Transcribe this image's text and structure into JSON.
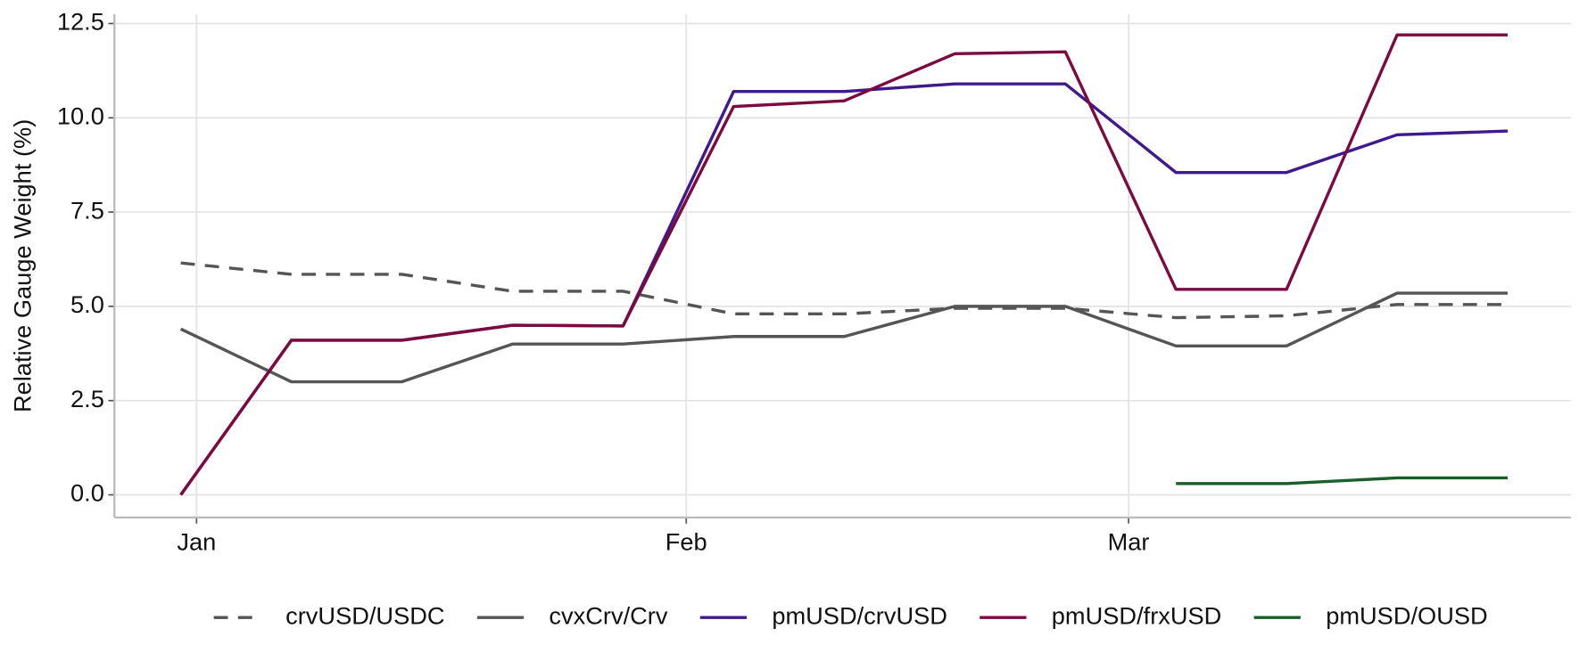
{
  "chart_data": {
    "type": "line",
    "y_label": "Relative Gauge Weight (%)",
    "x": [
      0,
      7,
      14,
      21,
      28,
      35,
      42,
      49,
      56,
      63,
      70,
      77,
      84
    ],
    "xlim": [
      -4.2,
      88
    ],
    "xticks": [
      {
        "value": 1,
        "label": "Jan"
      },
      {
        "value": 32,
        "label": "Feb"
      },
      {
        "value": 60,
        "label": "Mar"
      }
    ],
    "ylim": [
      -0.6,
      12.75
    ],
    "yticks": [
      {
        "value": 0,
        "label": "0.0"
      },
      2.5,
      {
        "value": 5,
        "label": "5.0"
      },
      7.5,
      {
        "value": 10,
        "label": "10.0"
      },
      12.5
    ],
    "grid": true,
    "legend": "bottom",
    "series": [
      {
        "name": "crvUSD/USDC",
        "color": "#555555",
        "linestyle": "dashed",
        "values": [
          6.15,
          5.85,
          5.85,
          5.4,
          5.4,
          4.8,
          4.8,
          4.95,
          4.95,
          4.7,
          4.75,
          5.05,
          5.05
        ]
      },
      {
        "name": "cvxCrv/Crv",
        "color": "#555555",
        "linestyle": "solid",
        "values": [
          4.4,
          3.0,
          3.0,
          4.0,
          4.0,
          4.2,
          4.2,
          5.0,
          5.0,
          3.95,
          3.95,
          5.35,
          5.35
        ]
      },
      {
        "name": "pmUSD/crvUSD",
        "color": "#3f1a8a",
        "linestyle": "solid",
        "values": [
          0,
          4.1,
          4.1,
          4.5,
          4.48,
          10.7,
          10.7,
          10.9,
          10.9,
          8.55,
          8.55,
          9.55,
          9.65
        ]
      },
      {
        "name": "pmUSD/frxUSD",
        "color": "#7b0a3f",
        "linestyle": "solid",
        "values": [
          0,
          4.1,
          4.1,
          4.5,
          4.48,
          10.3,
          10.45,
          11.7,
          11.75,
          5.45,
          5.45,
          12.2,
          12.2
        ]
      },
      {
        "name": "pmUSD/OUSD",
        "color": "#1a5e2a",
        "linestyle": "solid",
        "values": [
          null,
          null,
          null,
          null,
          null,
          null,
          null,
          null,
          null,
          0.3,
          0.3,
          0.45,
          0.45
        ]
      }
    ]
  }
}
